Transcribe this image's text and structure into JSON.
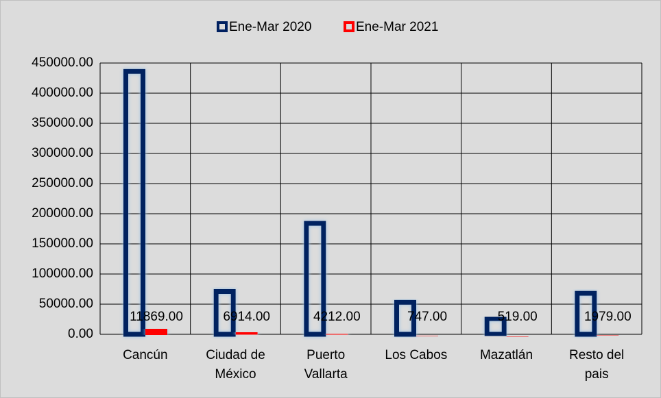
{
  "chart_data": {
    "type": "bar",
    "categories": [
      "Cancún",
      "Ciudad de México",
      "Puerto Vallarta",
      "Los Cabos",
      "Mazatlán",
      "Resto del pais"
    ],
    "series": [
      {
        "name": "Ene-Mar 2020",
        "color": "#002060",
        "values": [
          440000,
          75000,
          188000,
          57000,
          30000,
          72000
        ]
      },
      {
        "name": "Ene-Mar 2021",
        "color": "#ff0000",
        "values": [
          11869,
          6914,
          4212,
          747,
          519,
          1979
        ],
        "value_labels": [
          "11869.00",
          "6914.00",
          "4212.00",
          "747.00",
          "519.00",
          "1979.00"
        ]
      }
    ],
    "ylim": [
      0,
      450000
    ],
    "yticks": [
      {
        "value": 0,
        "label": "0.00"
      },
      {
        "value": 50000,
        "label": "50000.00"
      },
      {
        "value": 100000,
        "label": "100000.00"
      },
      {
        "value": 150000,
        "label": "150000.00"
      },
      {
        "value": 200000,
        "label": "200000.00"
      },
      {
        "value": 250000,
        "label": "250000.00"
      },
      {
        "value": 300000,
        "label": "300000.00"
      },
      {
        "value": 350000,
        "label": "350000.00"
      },
      {
        "value": 400000,
        "label": "400000.00"
      },
      {
        "value": 450000,
        "label": "450000.00"
      }
    ],
    "grid": true,
    "legend": "top"
  }
}
